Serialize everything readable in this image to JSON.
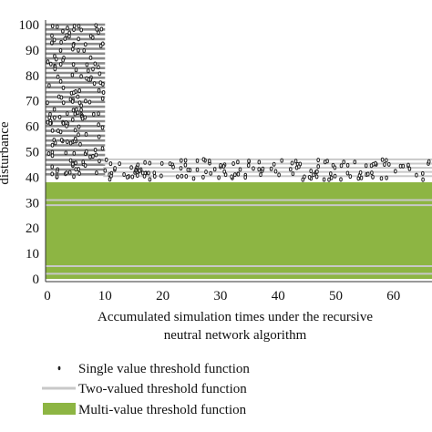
{
  "chart_data": {
    "type": "area",
    "title": "",
    "xlabel_lines": [
      "Accumulated simulation times under the recursive",
      "neutral network algorithm"
    ],
    "ylabel": "disturbance",
    "xlim": [
      0,
      68
    ],
    "ylim": [
      0,
      100
    ],
    "x_ticks": [
      0,
      10,
      20,
      30,
      40,
      50,
      60
    ],
    "y_ticks": [
      0,
      10,
      20,
      30,
      40,
      50,
      60,
      70,
      80,
      90,
      100
    ],
    "grid": false,
    "legend_position": "bottom",
    "colors": {
      "multi_value": "#8db543",
      "two_valued": "#c8c8c8",
      "single_value": "#222222"
    },
    "series": [
      {
        "name": "Single value threshold function",
        "style": "scatter",
        "regions": [
          {
            "x": [
              0,
              10
            ],
            "y": [
              40,
              100
            ]
          },
          {
            "x": [
              10,
              68
            ],
            "y": [
              39,
              47
            ]
          }
        ]
      },
      {
        "name": "Two-valued threshold function",
        "style": "lines",
        "regions": [
          {
            "x": [
              0,
              10
            ],
            "y": [
              40,
              100
            ]
          },
          {
            "x": [
              10,
              68
            ],
            "y": [
              39,
              47
            ]
          }
        ],
        "inner_levels": [
          2,
          5,
          29,
          31
        ]
      },
      {
        "name": "Multi-value threshold function",
        "style": "area",
        "x": [
          0,
          68
        ],
        "y": [
          0,
          38
        ]
      }
    ]
  }
}
